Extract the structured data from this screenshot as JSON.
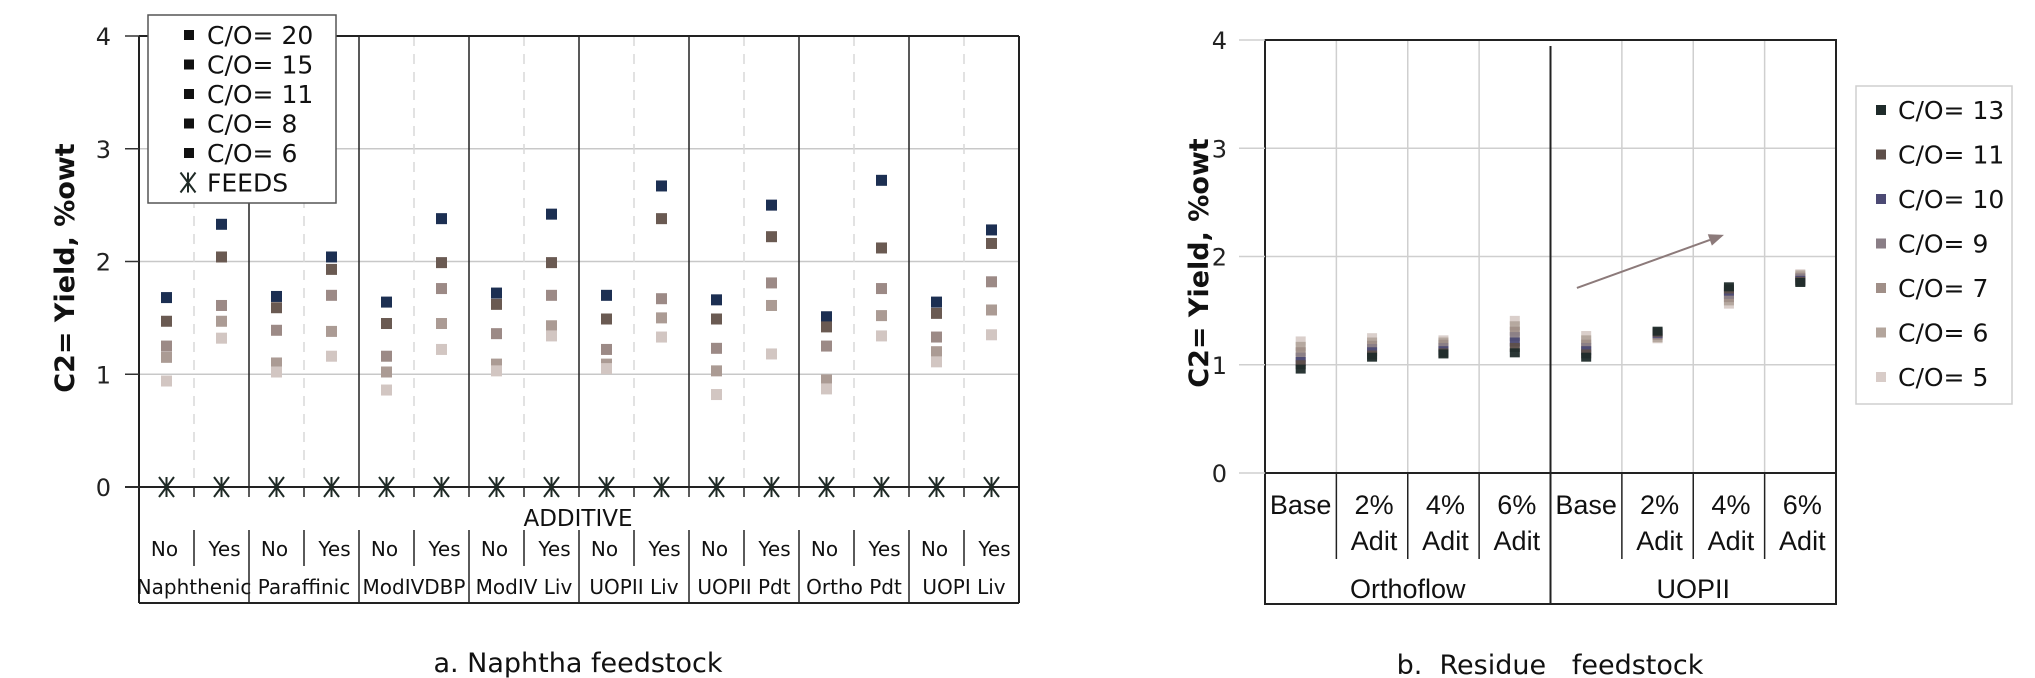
{
  "chart_data": [
    {
      "type": "scatter",
      "title": "a. Naphtha feedstock",
      "ylabel": "C2= Yield, %owt",
      "xlabel": "ADDITIVE",
      "ylim": [
        0,
        4
      ],
      "yticks": [
        "0",
        "1",
        "2",
        "3",
        "4"
      ],
      "grid": true,
      "legend_position": "top-left",
      "groups": [
        "Naphthenic",
        "Paraffinic",
        "ModIVDBP",
        "ModIV Liv",
        "UOPII Liv",
        "UOPII Pdt",
        "Ortho Pdt",
        "UOPI Liv"
      ],
      "subcategories": [
        "No",
        "Yes"
      ],
      "series": [
        {
          "name": "C/O= 20",
          "color": "#1c2f52",
          "values": [
            1.68,
            2.33,
            1.69,
            2.04,
            1.64,
            2.38,
            1.72,
            2.42,
            1.7,
            2.67,
            1.66,
            2.5,
            1.51,
            2.72,
            1.64,
            2.28
          ]
        },
        {
          "name": "C/O= 15",
          "color": "#6a5a52",
          "values": [
            1.47,
            2.04,
            1.59,
            1.93,
            1.45,
            1.99,
            1.62,
            1.99,
            1.49,
            2.38,
            1.49,
            2.22,
            1.42,
            2.12,
            1.54,
            2.16
          ]
        },
        {
          "name": "C/O= 11",
          "color": "#9c8a86",
          "values": [
            1.25,
            1.61,
            1.39,
            1.7,
            1.16,
            1.76,
            1.36,
            1.7,
            1.22,
            1.67,
            1.23,
            1.81,
            1.25,
            1.76,
            1.33,
            1.82
          ]
        },
        {
          "name": "C/O= 8",
          "color": "#ab9b94",
          "values": [
            1.15,
            1.47,
            1.1,
            1.38,
            1.02,
            1.45,
            1.09,
            1.43,
            1.09,
            1.5,
            1.03,
            1.61,
            0.95,
            1.52,
            1.2,
            1.57
          ]
        },
        {
          "name": "C/O= 6",
          "color": "#d2c6c2",
          "values": [
            0.94,
            1.32,
            1.02,
            1.16,
            0.86,
            1.22,
            1.03,
            1.34,
            1.05,
            1.33,
            0.82,
            1.18,
            0.87,
            1.34,
            1.11,
            1.35
          ]
        },
        {
          "name": "FEEDS",
          "color": "#1f2a26",
          "marker": "asterisk",
          "values": [
            0,
            0,
            0,
            0,
            0,
            0,
            0,
            0,
            0,
            0,
            0,
            0,
            0,
            0,
            0,
            0
          ]
        }
      ],
      "legend": [
        "C/O= 20",
        "C/O= 15",
        "C/O= 11",
        "C/O= 8",
        "C/O= 6",
        "FEEDS"
      ]
    },
    {
      "type": "scatter",
      "title": "b.  Residue   feedstock",
      "ylabel": "C2= Yield, %owt",
      "ylim": [
        0,
        4
      ],
      "yticks": [
        "0",
        "1",
        "2",
        "3",
        "4"
      ],
      "grid": true,
      "legend_position": "right",
      "groups": [
        "Orthoflow",
        "UOPII"
      ],
      "categories": [
        {
          "line1": "Base",
          "line2": ""
        },
        {
          "line1": "2%",
          "line2": "Adit"
        },
        {
          "line1": "4%",
          "line2": "Adit"
        },
        {
          "line1": "6%",
          "line2": "Adit"
        },
        {
          "line1": "Base",
          "line2": ""
        },
        {
          "line1": "2%",
          "line2": "Adit"
        },
        {
          "line1": "4%",
          "line2": "Adit"
        },
        {
          "line1": "6%",
          "line2": "Adit"
        }
      ],
      "series": [
        {
          "name": "C/O= 13",
          "color": "#1f2b2a",
          "values": [
            0.96,
            1.07,
            1.1,
            1.11,
            1.07,
            1.31,
            1.72,
            1.76
          ]
        },
        {
          "name": "C/O= 11",
          "color": "#5e4f4a",
          "values": [
            1.0,
            1.09,
            1.11,
            1.16,
            1.1,
            1.3,
            1.7,
            1.77
          ]
        },
        {
          "name": "C/O= 10",
          "color": "#4c4a74",
          "values": [
            1.03,
            1.12,
            1.13,
            1.21,
            1.13,
            1.29,
            1.68,
            1.78
          ]
        },
        {
          "name": "C/O= 9",
          "color": "#8a7e86",
          "values": [
            1.07,
            1.15,
            1.16,
            1.26,
            1.16,
            1.28,
            1.65,
            1.8
          ]
        },
        {
          "name": "C/O= 7",
          "color": "#a08f88",
          "values": [
            1.12,
            1.18,
            1.19,
            1.31,
            1.19,
            1.27,
            1.62,
            1.81
          ]
        },
        {
          "name": "C/O= 6",
          "color": "#b3a59c",
          "values": [
            1.17,
            1.21,
            1.21,
            1.36,
            1.23,
            1.25,
            1.59,
            1.83
          ]
        },
        {
          "name": "C/O= 5",
          "color": "#d8ccc8",
          "values": [
            1.22,
            1.25,
            1.23,
            1.41,
            1.27,
            1.24,
            1.56,
            1.84
          ]
        }
      ],
      "legend": [
        "C/O= 13",
        "C/O= 11",
        "C/O= 10",
        "C/O= 9",
        "C/O= 7",
        "C/O= 6",
        "C/O= 5"
      ],
      "annotation": {
        "type": "arrow",
        "from": [
          4.37,
          1.71
        ],
        "to": [
          6.43,
          2.2
        ],
        "color": "#8c7a7a"
      }
    }
  ]
}
